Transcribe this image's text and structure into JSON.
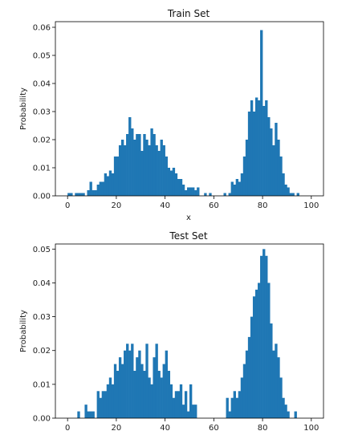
{
  "chart_data": [
    {
      "type": "bar",
      "title": "Train Set",
      "xlabel": "x",
      "ylabel": "Probability",
      "xlim": [
        -5,
        105
      ],
      "ylim": [
        0,
        0.062
      ],
      "xticks": [
        0,
        20,
        40,
        60,
        80,
        100
      ],
      "yticks": [
        0.0,
        0.01,
        0.02,
        0.03,
        0.04,
        0.05,
        0.06
      ],
      "ytick_labels": [
        "0.00",
        "0.01",
        "0.02",
        "0.03",
        "0.04",
        "0.05",
        "0.06"
      ],
      "bin_width": 1,
      "color": "#1f77b4",
      "bins": [
        [
          0,
          0.001
        ],
        [
          1,
          0.001
        ],
        [
          3,
          0.001
        ],
        [
          4,
          0.001
        ],
        [
          5,
          0.001
        ],
        [
          6,
          0.001
        ],
        [
          8,
          0.002
        ],
        [
          9,
          0.005
        ],
        [
          10,
          0.002
        ],
        [
          11,
          0.002
        ],
        [
          12,
          0.004
        ],
        [
          13,
          0.005
        ],
        [
          14,
          0.005
        ],
        [
          15,
          0.008
        ],
        [
          16,
          0.007
        ],
        [
          17,
          0.009
        ],
        [
          18,
          0.008
        ],
        [
          19,
          0.014
        ],
        [
          20,
          0.014
        ],
        [
          21,
          0.018
        ],
        [
          22,
          0.02
        ],
        [
          23,
          0.018
        ],
        [
          24,
          0.022
        ],
        [
          25,
          0.028
        ],
        [
          26,
          0.024
        ],
        [
          27,
          0.02
        ],
        [
          28,
          0.022
        ],
        [
          29,
          0.022
        ],
        [
          30,
          0.016
        ],
        [
          31,
          0.022
        ],
        [
          32,
          0.02
        ],
        [
          33,
          0.018
        ],
        [
          34,
          0.024
        ],
        [
          35,
          0.022
        ],
        [
          36,
          0.018
        ],
        [
          37,
          0.016
        ],
        [
          38,
          0.02
        ],
        [
          39,
          0.018
        ],
        [
          40,
          0.014
        ],
        [
          41,
          0.01
        ],
        [
          42,
          0.009
        ],
        [
          43,
          0.01
        ],
        [
          44,
          0.008
        ],
        [
          45,
          0.006
        ],
        [
          46,
          0.006
        ],
        [
          47,
          0.004
        ],
        [
          48,
          0.002
        ],
        [
          49,
          0.003
        ],
        [
          50,
          0.003
        ],
        [
          51,
          0.003
        ],
        [
          52,
          0.002
        ],
        [
          53,
          0.003
        ],
        [
          56,
          0.001
        ],
        [
          58,
          0.001
        ],
        [
          64,
          0.001
        ],
        [
          66,
          0.001
        ],
        [
          67,
          0.005
        ],
        [
          68,
          0.004
        ],
        [
          69,
          0.006
        ],
        [
          70,
          0.005
        ],
        [
          71,
          0.008
        ],
        [
          72,
          0.014
        ],
        [
          73,
          0.02
        ],
        [
          74,
          0.03
        ],
        [
          75,
          0.034
        ],
        [
          76,
          0.03
        ],
        [
          77,
          0.035
        ],
        [
          78,
          0.034
        ],
        [
          79,
          0.059
        ],
        [
          80,
          0.032
        ],
        [
          81,
          0.034
        ],
        [
          82,
          0.028
        ],
        [
          83,
          0.024
        ],
        [
          84,
          0.018
        ],
        [
          85,
          0.026
        ],
        [
          86,
          0.02
        ],
        [
          87,
          0.014
        ],
        [
          88,
          0.008
        ],
        [
          89,
          0.004
        ],
        [
          90,
          0.003
        ],
        [
          91,
          0.001
        ],
        [
          92,
          0.001
        ],
        [
          94,
          0.001
        ]
      ]
    },
    {
      "type": "bar",
      "title": "Test Set",
      "xlabel": "",
      "ylabel": "Probability",
      "xlim": [
        -5,
        105
      ],
      "ylim": [
        0,
        0.0515
      ],
      "xticks": [
        0,
        20,
        40,
        60,
        80,
        100
      ],
      "yticks": [
        0.0,
        0.01,
        0.02,
        0.03,
        0.04,
        0.05
      ],
      "ytick_labels": [
        "0.00",
        "0.01",
        "0.02",
        "0.03",
        "0.04",
        "0.05"
      ],
      "bin_width": 1,
      "color": "#1f77b4",
      "bins": [
        [
          4,
          0.002
        ],
        [
          7,
          0.004
        ],
        [
          8,
          0.002
        ],
        [
          9,
          0.002
        ],
        [
          10,
          0.002
        ],
        [
          12,
          0.008
        ],
        [
          13,
          0.006
        ],
        [
          14,
          0.008
        ],
        [
          15,
          0.008
        ],
        [
          16,
          0.01
        ],
        [
          17,
          0.012
        ],
        [
          18,
          0.01
        ],
        [
          19,
          0.016
        ],
        [
          20,
          0.014
        ],
        [
          21,
          0.018
        ],
        [
          22,
          0.016
        ],
        [
          23,
          0.02
        ],
        [
          24,
          0.022
        ],
        [
          25,
          0.02
        ],
        [
          26,
          0.022
        ],
        [
          27,
          0.014
        ],
        [
          28,
          0.018
        ],
        [
          29,
          0.02
        ],
        [
          30,
          0.016
        ],
        [
          31,
          0.014
        ],
        [
          32,
          0.022
        ],
        [
          33,
          0.012
        ],
        [
          34,
          0.01
        ],
        [
          35,
          0.018
        ],
        [
          36,
          0.022
        ],
        [
          37,
          0.014
        ],
        [
          38,
          0.012
        ],
        [
          39,
          0.016
        ],
        [
          40,
          0.02
        ],
        [
          41,
          0.014
        ],
        [
          42,
          0.01
        ],
        [
          43,
          0.006
        ],
        [
          44,
          0.008
        ],
        [
          45,
          0.008
        ],
        [
          46,
          0.01
        ],
        [
          47,
          0.004
        ],
        [
          48,
          0.008
        ],
        [
          49,
          0.002
        ],
        [
          50,
          0.01
        ],
        [
          51,
          0.004
        ],
        [
          52,
          0.004
        ],
        [
          65,
          0.006
        ],
        [
          66,
          0.002
        ],
        [
          67,
          0.006
        ],
        [
          68,
          0.008
        ],
        [
          69,
          0.006
        ],
        [
          70,
          0.008
        ],
        [
          71,
          0.012
        ],
        [
          72,
          0.016
        ],
        [
          73,
          0.02
        ],
        [
          74,
          0.024
        ],
        [
          75,
          0.03
        ],
        [
          76,
          0.036
        ],
        [
          77,
          0.038
        ],
        [
          78,
          0.04
        ],
        [
          79,
          0.048
        ],
        [
          80,
          0.05
        ],
        [
          81,
          0.048
        ],
        [
          82,
          0.04
        ],
        [
          83,
          0.028
        ],
        [
          84,
          0.02
        ],
        [
          85,
          0.022
        ],
        [
          86,
          0.018
        ],
        [
          87,
          0.012
        ],
        [
          88,
          0.006
        ],
        [
          89,
          0.004
        ],
        [
          90,
          0.002
        ],
        [
          93,
          0.002
        ]
      ]
    }
  ]
}
